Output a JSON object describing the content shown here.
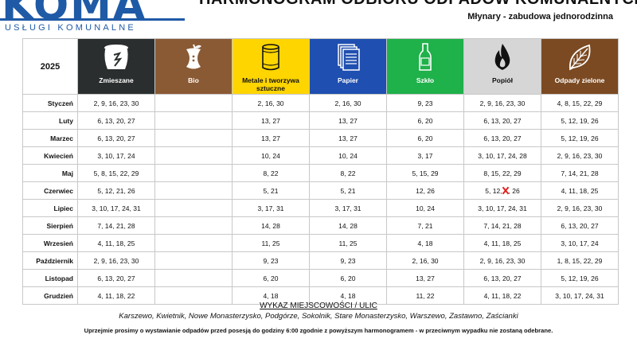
{
  "logo": {
    "word": "KOMA",
    "subtitle": "USŁUGI KOMUNALNE",
    "color": "#1f5aa6"
  },
  "header": {
    "title": "HARMONOGRAM ODBIORU ODPADÓW KOMUNALNYCH",
    "subtitle": "Młynary - zabudowa jednorodzinna"
  },
  "table": {
    "year": "2025",
    "columns": [
      {
        "label": "Zmieszane",
        "color": "#2b2e2f",
        "icon": "trash-bin-icon",
        "text_color": "#ffffff"
      },
      {
        "label": "Bio",
        "color": "#8a5a34",
        "icon": "apple-core-icon",
        "text_color": "#ffffff"
      },
      {
        "label": "Metale i tworzywa sztuczne",
        "color": "#ffd500",
        "icon": "can-icon",
        "text_color": "#111111"
      },
      {
        "label": "Papier",
        "color": "#1f4fb0",
        "icon": "paper-stack-icon",
        "text_color": "#ffffff"
      },
      {
        "label": "Szkło",
        "color": "#1fb14a",
        "icon": "bottle-icon",
        "text_color": "#ffffff"
      },
      {
        "label": "Popiół",
        "color": "#d6d6d6",
        "icon": "flame-icon",
        "text_color": "#111111"
      },
      {
        "label": "Odpady zielone",
        "color": "#7b4a22",
        "icon": "leaf-icon",
        "text_color": "#ffffff"
      }
    ],
    "rows": [
      {
        "month": "Styczeń",
        "values": [
          "2, 9, 16, 23, 30",
          "",
          "2, 16, 30",
          "2, 16, 30",
          "9, 23",
          "2, 9, 16, 23, 30",
          "4, 8, 15, 22, 29"
        ]
      },
      {
        "month": "Luty",
        "values": [
          "6, 13, 20, 27",
          "",
          "13, 27",
          "13, 27",
          "6, 20",
          "6, 13, 20, 27",
          "5, 12, 19, 26"
        ]
      },
      {
        "month": "Marzec",
        "values": [
          "6, 13, 20, 27",
          "",
          "13, 27",
          "13, 27",
          "6, 20",
          "6, 13, 20, 27",
          "5, 12, 19, 26"
        ]
      },
      {
        "month": "Kwiecień",
        "values": [
          "3, 10, 17, 24",
          "",
          "10, 24",
          "10, 24",
          "3, 17",
          "3, 10, 17, 24, 28",
          "2, 9, 16, 23, 30"
        ]
      },
      {
        "month": "Maj",
        "values": [
          "5, 8, 15, 22, 29",
          "",
          "8, 22",
          "8, 22",
          "5, 15, 29",
          "8, 15, 22, 29",
          "7, 14, 21, 28"
        ]
      },
      {
        "month": "Czerwiec",
        "values": [
          "5, 12, 21, 26",
          "",
          "5, 21",
          "5, 21",
          "12, 26",
          "",
          "4, 11, 18, 25"
        ]
      },
      {
        "month": "Lipiec",
        "values": [
          "3, 10, 17, 24, 31",
          "",
          "3, 17, 31",
          "3, 17, 31",
          "10, 24",
          "3, 10, 17, 24, 31",
          "2, 9, 16, 23, 30"
        ]
      },
      {
        "month": "Sierpień",
        "values": [
          "7, 14, 21, 28",
          "",
          "14, 28",
          "14, 28",
          "7, 21",
          "7, 14, 21, 28",
          "6, 13, 20, 27"
        ]
      },
      {
        "month": "Wrzesień",
        "values": [
          "4, 11, 18, 25",
          "",
          "11, 25",
          "11, 25",
          "4, 18",
          "4, 11, 18, 25",
          "3, 10, 17, 24"
        ]
      },
      {
        "month": "Październik",
        "values": [
          "2, 9, 16, 23, 30",
          "",
          "9, 23",
          "9, 23",
          "2, 16, 30",
          "2, 9, 16, 23, 30",
          "1, 8, 15, 22, 29"
        ]
      },
      {
        "month": "Listopad",
        "values": [
          "6, 13, 20, 27",
          "",
          "6, 20",
          "6, 20",
          "13, 27",
          "6, 13, 20, 27",
          "5, 12, 19, 26"
        ]
      },
      {
        "month": "Grudzień",
        "values": [
          "4, 11, 18, 22",
          "",
          "4, 18",
          "4, 18",
          "11, 22",
          "4, 11, 18, 22",
          "3, 10, 17, 24, 31"
        ]
      }
    ],
    "june_ash": {
      "before": "5, 12,",
      "crossed": "19",
      "after": ", 26"
    }
  },
  "footer": {
    "places_title": "WYKAZ MIEJSCOWOŚCI / ULIC",
    "places": "Karszewo, Kwietnik, Nowe Monasterzysko, Podgórze, Sokolnik, Stare Monasterzysko, Warszewo, Zastawno, Zaścianki",
    "note": "Uprzejmie prosimy o wystawianie odpadów przed posesją do godziny 6:00 zgodnie z powyższym harmonogramem - w przeciwnym wypadku nie zostaną odebrane."
  }
}
